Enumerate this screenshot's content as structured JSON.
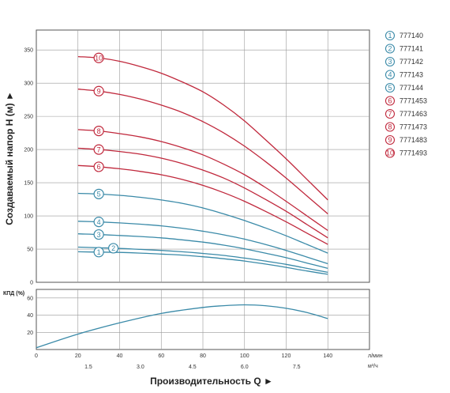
{
  "chart_data": [
    {
      "type": "line",
      "x_unit": "л/мин",
      "ylabel": "Создаваемый напор H (м) ►",
      "xlim": [
        0,
        160
      ],
      "ylim": [
        0,
        380
      ],
      "x_ticks": [
        20,
        40,
        60,
        80,
        100,
        120,
        140
      ],
      "y_ticks": [
        0,
        50,
        100,
        150,
        200,
        250,
        300,
        350
      ],
      "grid": true,
      "legend_position": "right",
      "series": [
        {
          "name": "777140",
          "label": "1",
          "color": "#3a8aa8",
          "x": [
            20,
            30,
            40,
            50,
            60,
            70,
            80,
            90,
            100,
            110,
            120,
            130,
            140
          ],
          "y": [
            46,
            45.5,
            45,
            44,
            42.5,
            41,
            38.5,
            35.5,
            32,
            27.5,
            22.5,
            17,
            12
          ],
          "marker_x": 30
        },
        {
          "name": "777141",
          "label": "2",
          "color": "#3a8aa8",
          "x": [
            20,
            30,
            40,
            50,
            60,
            70,
            80,
            90,
            100,
            110,
            120,
            130,
            140
          ],
          "y": [
            53,
            52,
            51,
            49.5,
            48,
            46,
            43.5,
            40.5,
            36.5,
            32,
            27,
            21,
            15
          ],
          "marker_x": 37
        },
        {
          "name": "777142",
          "label": "3",
          "color": "#3a8aa8",
          "x": [
            20,
            30,
            40,
            50,
            60,
            70,
            80,
            90,
            100,
            110,
            120,
            130,
            140
          ],
          "y": [
            73,
            72,
            70.5,
            69,
            67,
            64,
            60.5,
            56,
            50.5,
            44,
            37,
            29,
            21
          ],
          "marker_x": 30
        },
        {
          "name": "777143",
          "label": "4",
          "color": "#3a8aa8",
          "x": [
            20,
            30,
            40,
            50,
            60,
            70,
            80,
            90,
            100,
            110,
            120,
            130,
            140
          ],
          "y": [
            92,
            91,
            89.5,
            87.5,
            85,
            81.5,
            77,
            71.5,
            65,
            57,
            48,
            38,
            28
          ],
          "marker_x": 30
        },
        {
          "name": "777144",
          "label": "5",
          "color": "#3a8aa8",
          "x": [
            20,
            30,
            40,
            50,
            60,
            70,
            80,
            90,
            100,
            110,
            120,
            130,
            140
          ],
          "y": [
            134,
            133,
            131,
            128,
            124,
            119,
            112,
            103,
            93,
            82,
            70,
            57,
            44
          ],
          "marker_x": 30
        },
        {
          "name": "7771453",
          "label": "6",
          "color": "#c0283c",
          "x": [
            20,
            30,
            40,
            50,
            60,
            70,
            80,
            90,
            100,
            110,
            120,
            130,
            140
          ],
          "y": [
            176,
            174,
            171,
            167,
            162,
            155,
            146,
            135,
            122,
            107,
            91,
            74,
            57
          ],
          "marker_x": 30
        },
        {
          "name": "7771463",
          "label": "7",
          "color": "#c0283c",
          "x": [
            20,
            30,
            40,
            50,
            60,
            70,
            80,
            90,
            100,
            110,
            120,
            130,
            140
          ],
          "y": [
            202,
            200,
            197,
            193,
            187,
            179,
            169,
            157,
            142,
            125,
            107,
            87,
            67
          ],
          "marker_x": 30
        },
        {
          "name": "7771473",
          "label": "8",
          "color": "#c0283c",
          "x": [
            20,
            30,
            40,
            50,
            60,
            70,
            80,
            90,
            100,
            110,
            120,
            130,
            140
          ],
          "y": [
            230,
            228,
            224,
            219,
            212,
            203,
            192,
            178,
            162,
            143,
            122,
            100,
            78
          ],
          "marker_x": 30
        },
        {
          "name": "7771483",
          "label": "9",
          "color": "#c0283c",
          "x": [
            20,
            30,
            40,
            50,
            60,
            70,
            80,
            90,
            100,
            110,
            120,
            130,
            140
          ],
          "y": [
            291,
            288,
            283,
            276,
            267,
            256,
            242,
            225,
            205,
            182,
            157,
            130,
            103
          ],
          "marker_x": 30
        },
        {
          "name": "7771493",
          "label": "10",
          "color": "#c0283c",
          "x": [
            20,
            30,
            40,
            50,
            60,
            70,
            80,
            90,
            100,
            110,
            120,
            130,
            140
          ],
          "y": [
            340,
            338,
            333,
            325,
            315,
            302,
            287,
            267,
            243,
            215,
            186,
            155,
            124
          ],
          "marker_x": 30
        }
      ]
    },
    {
      "type": "line",
      "ylabel": "КПД (%)",
      "xlabel": "Производительность Q ►",
      "x_unit": "л/мин",
      "x2_unit": "м³/ч",
      "xlim": [
        0,
        160
      ],
      "ylim": [
        0,
        70
      ],
      "x_ticks": [
        0,
        20,
        40,
        60,
        80,
        100,
        120,
        140
      ],
      "x2_ticks": [
        "1.5",
        "3.0",
        "4.5",
        "6.0",
        "7.5"
      ],
      "y_ticks": [
        20,
        40,
        60
      ],
      "grid": true,
      "series": [
        {
          "color": "#3a8aa8",
          "x": [
            0,
            20,
            40,
            60,
            80,
            90,
            100,
            110,
            120,
            130,
            140
          ],
          "y": [
            2,
            18,
            31,
            42,
            49,
            51,
            52,
            51,
            48,
            43,
            36
          ]
        }
      ]
    }
  ]
}
